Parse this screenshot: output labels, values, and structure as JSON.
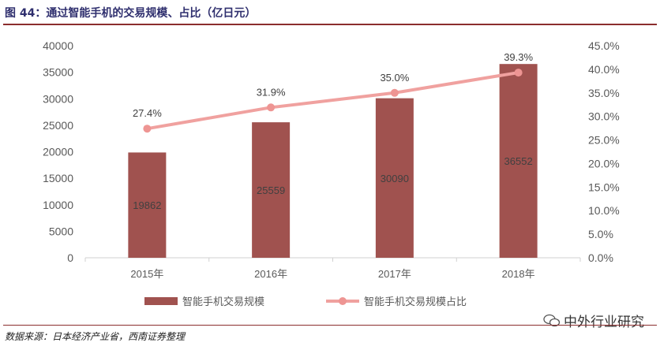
{
  "title": "图 44：通过智能手机的交易规模、占比（亿日元）",
  "source": "数据来源：日本经济产业省，西南证券整理",
  "watermark": "中外行业研究",
  "colors": {
    "bar": "#a0524f",
    "line": "#f0a19f",
    "marker": "#ee9593",
    "accent": "#8b2e2e"
  },
  "chart_data": {
    "type": "bar",
    "categories": [
      "2015年",
      "2016年",
      "2017年",
      "2018年"
    ],
    "series": [
      {
        "name": "智能手机交易规模",
        "type": "bar",
        "axis": "left",
        "values": [
          19862,
          25559,
          30090,
          36552
        ]
      },
      {
        "name": "智能手机交易规模占比",
        "type": "line",
        "axis": "right",
        "values": [
          27.4,
          31.9,
          35.0,
          39.3
        ],
        "labels": [
          "27.4%",
          "31.9%",
          "35.0%",
          "39.3%"
        ]
      }
    ],
    "y_left": {
      "lim": [
        0,
        40000
      ],
      "ticks": [
        "0",
        "5000",
        "10000",
        "15000",
        "20000",
        "25000",
        "30000",
        "35000",
        "40000"
      ]
    },
    "y_right": {
      "lim": [
        0,
        45
      ],
      "ticks": [
        "0.0%",
        "5.0%",
        "10.0%",
        "15.0%",
        "20.0%",
        "25.0%",
        "30.0%",
        "35.0%",
        "40.0%",
        "45.0%"
      ]
    },
    "legend": "bottom"
  }
}
